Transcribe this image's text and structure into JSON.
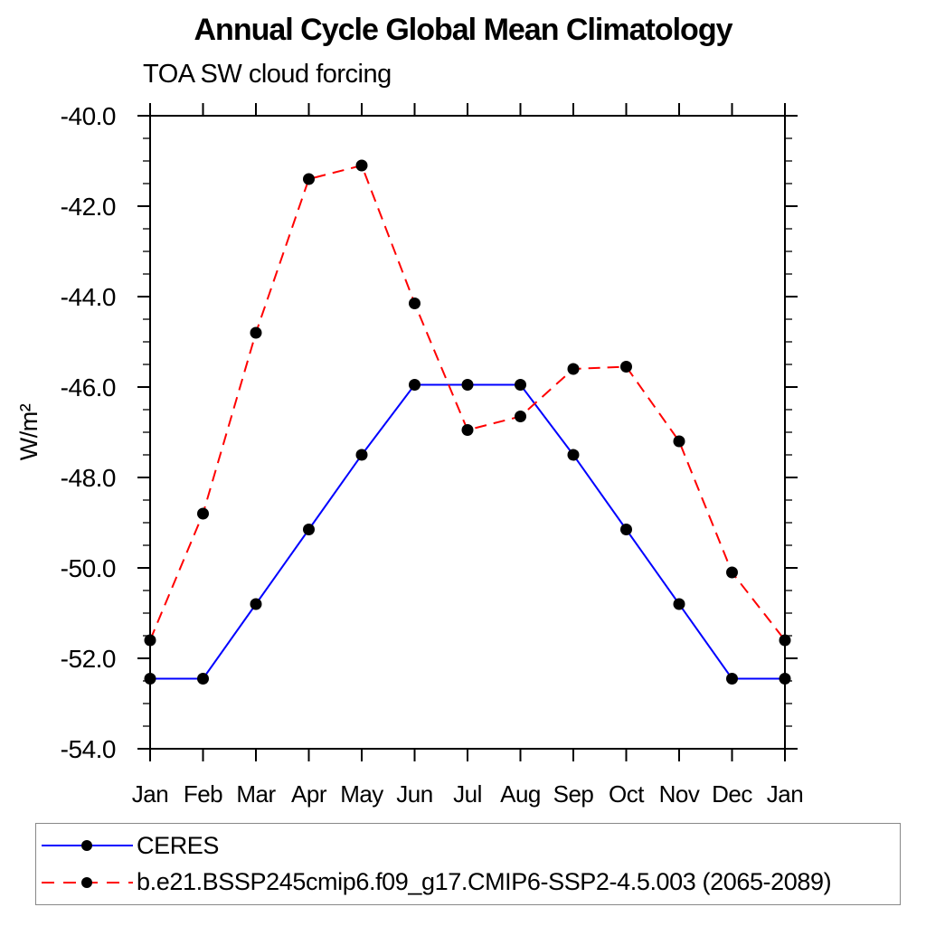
{
  "chart_data": {
    "type": "line",
    "title": "Annual Cycle Global Mean Climatology",
    "subtitle": "TOA SW cloud forcing",
    "ylabel": "W/m²",
    "xlabel": "",
    "categories": [
      "Jan",
      "Feb",
      "Mar",
      "Apr",
      "May",
      "Jun",
      "Jul",
      "Aug",
      "Sep",
      "Oct",
      "Nov",
      "Dec",
      "Jan"
    ],
    "ylim": [
      -54.0,
      -40.0
    ],
    "y_major_ticks": [
      -40.0,
      -42.0,
      -44.0,
      -46.0,
      -48.0,
      -50.0,
      -52.0,
      -54.0
    ],
    "y_tick_labels": [
      "-40.0",
      "-42.0",
      "-44.0",
      "-46.0",
      "-48.0",
      "-50.0",
      "-52.0",
      "-54.0"
    ],
    "y_minor_step": 0.5,
    "grid": false,
    "legend_position": "bottom",
    "axis_color": "#000000",
    "series": [
      {
        "name": "CERES",
        "color": "#0000ff",
        "style": "solid",
        "marker": "circle",
        "marker_color": "#000000",
        "values": [
          -52.45,
          -52.45,
          -50.8,
          -49.15,
          -47.5,
          -45.95,
          -45.95,
          -45.95,
          -47.5,
          -49.15,
          -50.8,
          -52.45,
          -52.45
        ]
      },
      {
        "name": "b.e21.BSSP245cmip6.f09_g17.CMIP6-SSP2-4.5.003 (2065-2089)",
        "color": "#ff0000",
        "style": "dashed",
        "marker": "circle",
        "marker_color": "#000000",
        "values": [
          -51.6,
          -48.8,
          -44.8,
          -41.4,
          -41.1,
          -44.15,
          -46.95,
          -46.65,
          -45.6,
          -45.55,
          -47.2,
          -50.1,
          -51.6
        ]
      }
    ]
  }
}
